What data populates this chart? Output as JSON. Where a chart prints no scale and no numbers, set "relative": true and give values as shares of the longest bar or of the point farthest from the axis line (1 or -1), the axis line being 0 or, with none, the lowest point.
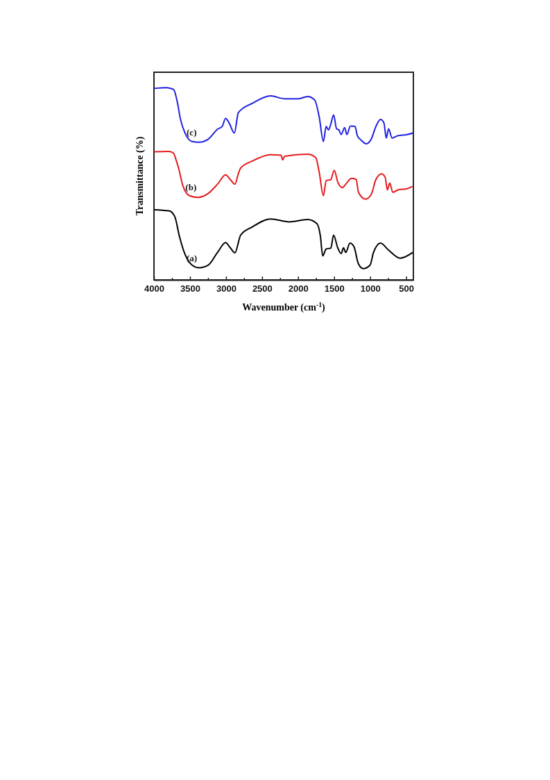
{
  "chart_data": {
    "type": "line",
    "xlabel": "Wavenumber (cm$^{-1}$)",
    "ylabel": "Transmittance (%)",
    "relative": true,
    "legend": false,
    "grid": false,
    "xlim": [
      4000,
      400
    ],
    "xticks": [
      4000,
      {
        "value": 3750,
        "label": null
      },
      3500,
      {
        "value": 3250,
        "label": null
      },
      3000,
      {
        "value": 2750,
        "label": null
      },
      2500,
      {
        "value": 2250,
        "label": null
      },
      2000,
      {
        "value": 1750,
        "label": null
      },
      1500,
      {
        "value": 1250,
        "label": null
      },
      1000,
      {
        "value": 750,
        "label": null
      },
      500
    ],
    "series": [
      {
        "name": "(a)",
        "color": "#000000",
        "x": [
          4000,
          3791,
          3711,
          3647,
          3567,
          3471,
          3374,
          3246,
          3118,
          3006,
          2941,
          2877,
          2797,
          2637,
          2380,
          2123,
          1867,
          1738,
          1690,
          1658,
          1610,
          1546,
          1507,
          1450,
          1402,
          1370,
          1338,
          1280,
          1225,
          1162,
          1097,
          1001,
          953,
          856,
          744,
          583,
          407
        ],
        "values": [
          0.365,
          0.359,
          0.329,
          0.227,
          0.131,
          0.077,
          0.063,
          0.077,
          0.143,
          0.194,
          0.167,
          0.141,
          0.233,
          0.275,
          0.317,
          0.302,
          0.314,
          0.293,
          0.227,
          0.125,
          0.161,
          0.165,
          0.233,
          0.167,
          0.137,
          0.167,
          0.143,
          0.191,
          0.173,
          0.083,
          0.059,
          0.077,
          0.143,
          0.191,
          0.155,
          0.113,
          0.143
        ]
      },
      {
        "name": "(b)",
        "color": "#e41a1c",
        "x": [
          4000,
          3800,
          3730,
          3690,
          3663,
          3599,
          3503,
          3390,
          3246,
          3118,
          3006,
          2941,
          2877,
          2829,
          2797,
          2637,
          2380,
          2236,
          2213,
          2187,
          1867,
          1754,
          1706,
          1649,
          1610,
          1546,
          1498,
          1450,
          1386,
          1338,
          1258,
          1194,
          1162,
          1065,
          985,
          920,
          840,
          792,
          760,
          728,
          686,
          615,
          487,
          414
        ],
        "values": [
          0.666,
          0.668,
          0.66,
          0.62,
          0.588,
          0.49,
          0.437,
          0.429,
          0.45,
          0.498,
          0.546,
          0.522,
          0.498,
          0.552,
          0.582,
          0.618,
          0.651,
          0.648,
          0.624,
          0.643,
          0.654,
          0.636,
          0.558,
          0.438,
          0.516,
          0.522,
          0.57,
          0.51,
          0.48,
          0.498,
          0.528,
          0.522,
          0.456,
          0.42,
          0.444,
          0.522,
          0.552,
          0.534,
          0.468,
          0.504,
          0.456,
          0.468,
          0.474,
          0.486
        ]
      },
      {
        "name": "(c)",
        "color": "#1f1fe0",
        "x": [
          4000,
          3824,
          3727,
          3679,
          3631,
          3567,
          3471,
          3374,
          3246,
          3118,
          3054,
          3006,
          2957,
          2884,
          2829,
          2637,
          2380,
          2187,
          1995,
          1867,
          1770,
          1706,
          1649,
          1610,
          1578,
          1546,
          1507,
          1466,
          1434,
          1402,
          1354,
          1322,
          1274,
          1210,
          1177,
          1129,
          1049,
          985,
          920,
          856,
          808,
          776,
          744,
          696,
          615,
          487,
          407
        ],
        "values": [
          0.996,
          1.0,
          0.99,
          0.93,
          0.834,
          0.762,
          0.72,
          0.716,
          0.732,
          0.784,
          0.798,
          0.84,
          0.816,
          0.764,
          0.87,
          0.918,
          0.957,
          0.942,
          0.942,
          0.954,
          0.936,
          0.846,
          0.72,
          0.798,
          0.78,
          0.81,
          0.858,
          0.786,
          0.78,
          0.756,
          0.792,
          0.756,
          0.8,
          0.798,
          0.75,
          0.728,
          0.708,
          0.732,
          0.798,
          0.834,
          0.816,
          0.738,
          0.786,
          0.738,
          0.75,
          0.756,
          0.764
        ]
      }
    ]
  }
}
